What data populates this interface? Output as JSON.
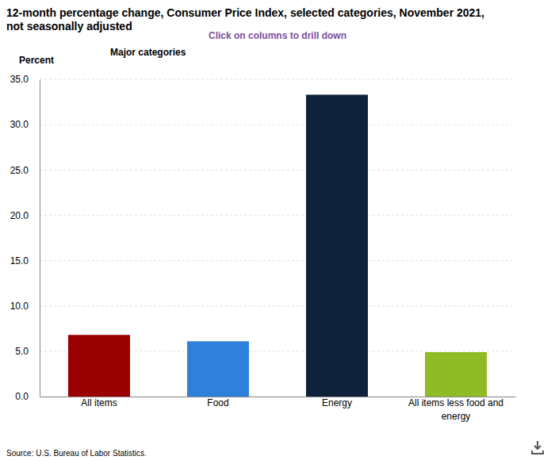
{
  "chart_data": {
    "type": "bar",
    "title": "12-month percentage change, Consumer Price Index, selected categories, November 2021, not seasonally adjusted",
    "subtitle": "Click on columns to drill down",
    "y_label": "Percent",
    "annotations": [
      "Major categories",
      "Source: U.S. Bureau of Labor Statistics."
    ],
    "categories": [
      "All items",
      "Food",
      "Energy",
      "All items less food and energy"
    ],
    "values": [
      6.8,
      6.1,
      33.3,
      4.9
    ],
    "colors": [
      "#990000",
      "#2f80db",
      "#0e223b",
      "#8fbc26"
    ],
    "ylim": [
      0,
      35
    ],
    "yticks": [
      {
        "value": 0,
        "label": "0.0"
      },
      {
        "value": 5,
        "label": "5.0"
      },
      {
        "value": 10,
        "label": "10.0"
      },
      {
        "value": 15,
        "label": "15.0"
      },
      {
        "value": 20,
        "label": "20.0"
      },
      {
        "value": 25,
        "label": "25.0"
      },
      {
        "value": 30,
        "label": "30.0"
      },
      {
        "value": 35,
        "label": "35.0"
      }
    ],
    "grid": true
  }
}
